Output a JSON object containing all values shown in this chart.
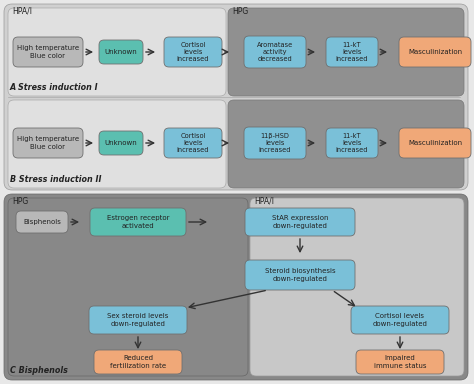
{
  "bg_color": "#e8e8e8",
  "panel_AB_outer_bg": "#d0d0d0",
  "panel_A_hpa_bg": "#e0e0e0",
  "panel_AB_hpg_bg": "#909090",
  "panel_C_outer_bg": "#888888",
  "panel_C_hpg_bg": "#888888",
  "panel_C_hpai_bg": "#c8c8c8",
  "box_gray": "#b8b8b8",
  "box_green": "#5bbfb0",
  "box_blue": "#7ac0d8",
  "box_orange": "#f0a878",
  "text_dark": "#222222",
  "section_A_label": "A Stress induction I",
  "section_B_label": "B Stress induction II",
  "section_C_label": "C Bisphenols",
  "hpa_label": "HPA/I",
  "hpg_label": "HPG"
}
